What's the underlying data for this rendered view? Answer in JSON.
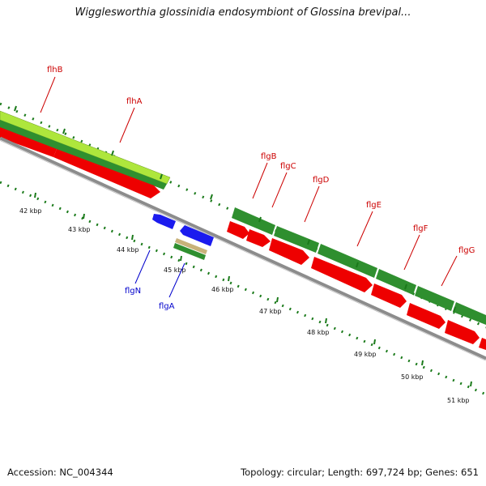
{
  "title": "Wigglesworthia glossinidia endosymbiont of Glossina brevipal...",
  "footer": {
    "accession": "Accession: NC_004344",
    "topology": "Topology: circular; Length: 697,724 bp; Genes: 651"
  },
  "colors": {
    "backbone": "#8c8c8c",
    "cds_red": "#ee0000",
    "gene_green": "#2f8f2f",
    "gene_lime": "#aee63c",
    "rna_blue": "#1b1bee",
    "tan": "#c8b27a",
    "label_red": "#cc0000",
    "label_blue": "#0000cc",
    "tick_green": "#1a7a1a"
  },
  "gene_labels": [
    {
      "text": "flhB",
      "color": "red"
    },
    {
      "text": "flhA",
      "color": "red"
    },
    {
      "text": "flgB",
      "color": "red"
    },
    {
      "text": "flgC",
      "color": "red"
    },
    {
      "text": "flgD",
      "color": "red"
    },
    {
      "text": "flgE",
      "color": "red"
    },
    {
      "text": "flgF",
      "color": "red"
    },
    {
      "text": "flgG",
      "color": "red"
    },
    {
      "text": "flgN",
      "color": "blue"
    },
    {
      "text": "flgA",
      "color": "blue"
    }
  ],
  "scale_labels": [
    "42 kbp",
    "43 kbp",
    "44 kbp",
    "45 kbp",
    "46 kbp",
    "47 kbp",
    "48 kbp",
    "49 kbp",
    "50 kbp",
    "51 kbp"
  ]
}
